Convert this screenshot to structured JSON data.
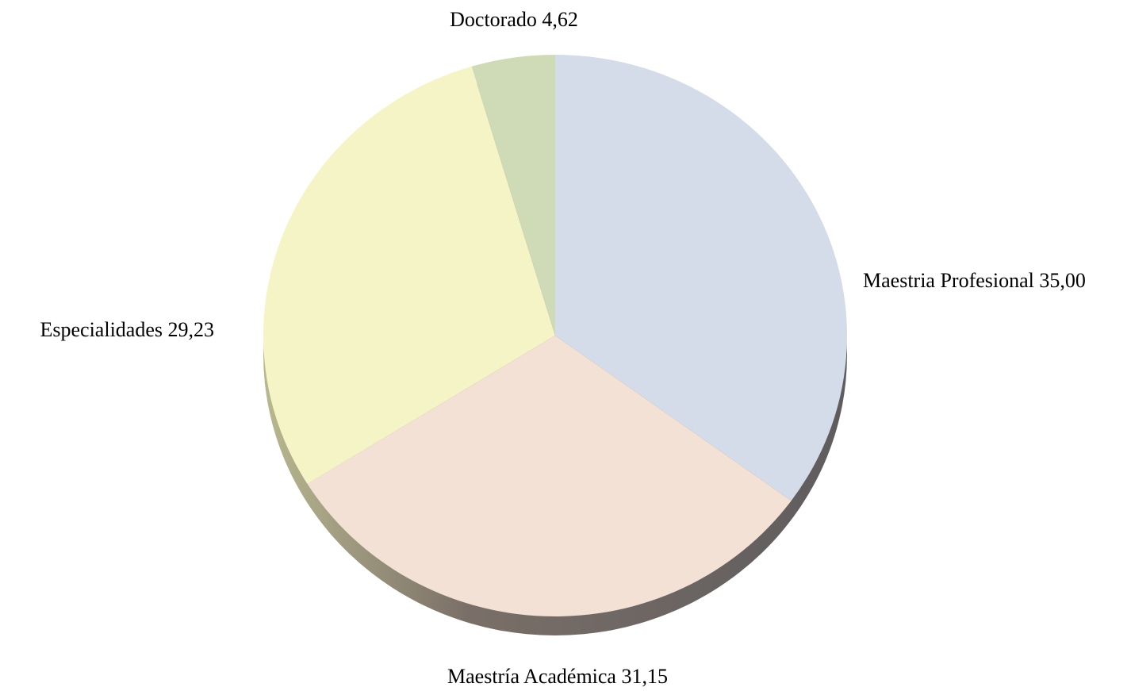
{
  "chart_data": {
    "type": "pie",
    "categories": [
      "Maestria Profesional",
      "Maestría Académica",
      "Especialidades",
      "Doctorado"
    ],
    "values": [
      35.0,
      31.15,
      29.23,
      4.62
    ],
    "value_labels": [
      "35,00",
      "31,15",
      "29,23",
      "4,62"
    ],
    "colors": [
      "#d4dcea",
      "#f2e1d4",
      "#f5f4c6",
      "#cfdbb7"
    ]
  }
}
